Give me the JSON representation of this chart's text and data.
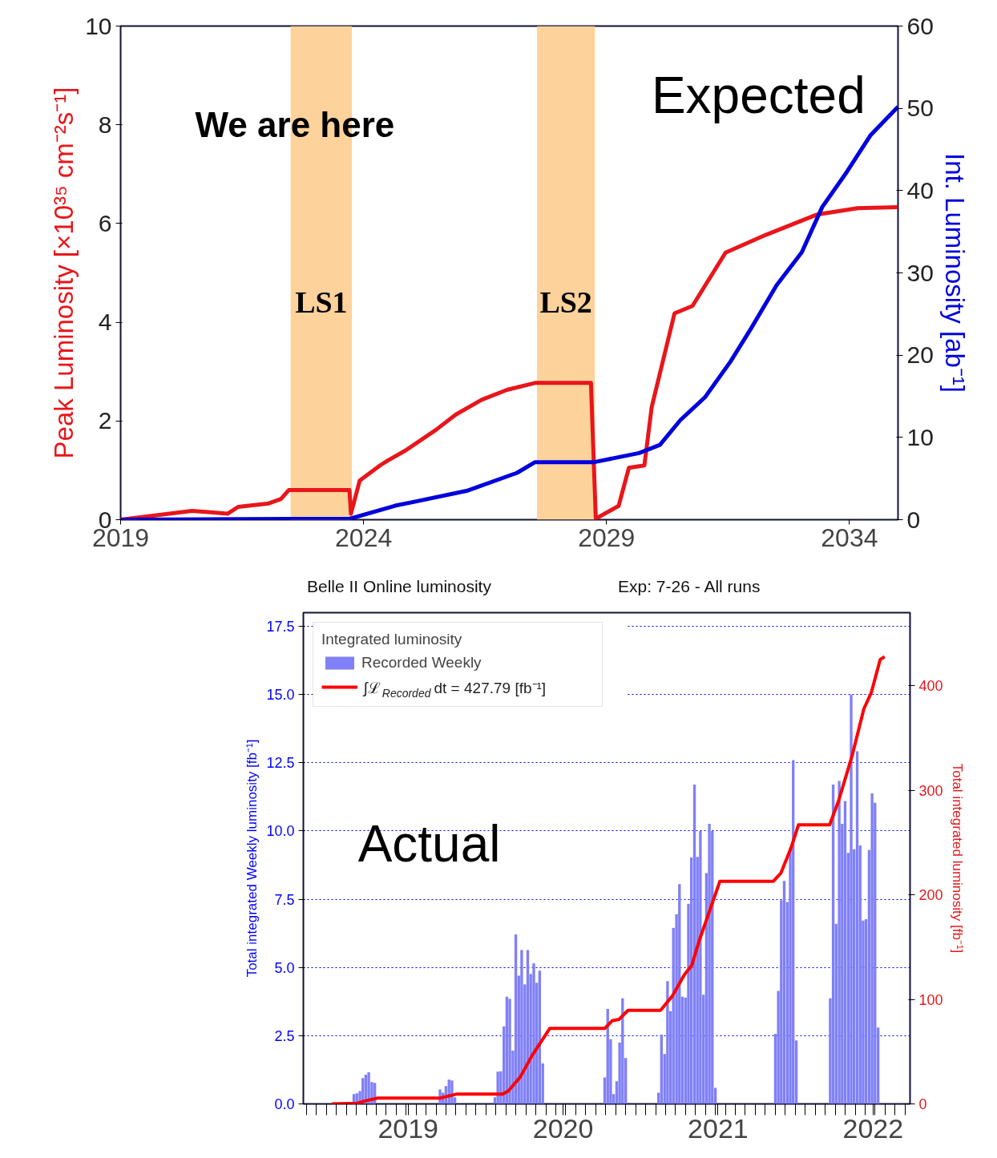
{
  "chart_data": [
    {
      "type": "line",
      "ylabel": "Peak Luminosity [×10³⁵ cm⁻²s⁻¹]",
      "y2label": "Int. Luminosity [ab⁻¹]",
      "annotations": [
        "We are here",
        "Expected"
      ],
      "xlim": [
        2019,
        2035
      ],
      "xticks": [
        2019,
        2024,
        2029,
        2034
      ],
      "ylim": [
        0,
        10
      ],
      "yticks": [
        0,
        2,
        4,
        6,
        8,
        10
      ],
      "y2lim": [
        0,
        60
      ],
      "y2ticks": [
        0,
        10,
        20,
        30,
        40,
        50,
        60
      ],
      "bands": [
        {
          "axis": "x",
          "from": 2022.5,
          "to": 2023.76,
          "label": "LS1",
          "color": "#fdd29b"
        },
        {
          "axis": "x",
          "from": 2027.57,
          "to": 2028.76,
          "label": "LS2",
          "color": "#fdd29b"
        }
      ],
      "series": [
        {
          "color": "#e8161b",
          "axis": "y",
          "x": [
            2019.0,
            2020.47,
            2021.2,
            2021.42,
            2022.05,
            2022.3,
            2022.46,
            2023.71,
            2023.74,
            2023.92,
            2024.34,
            2024.5,
            2024.86,
            2025.49,
            2025.9,
            2026.43,
            2026.95,
            2027.53,
            2028.68,
            2028.78,
            2029.25,
            2029.46,
            2029.78,
            2029.93,
            2030.4,
            2030.77,
            2031.45,
            2032.28,
            2033.33,
            2034.17,
            2035.0
          ],
          "values": [
            0,
            0.18,
            0.12,
            0.26,
            0.33,
            0.42,
            0.6,
            0.6,
            0.12,
            0.79,
            1.1,
            1.2,
            1.4,
            1.82,
            2.13,
            2.43,
            2.63,
            2.77,
            2.77,
            0.02,
            0.28,
            1.05,
            1.1,
            2.28,
            4.18,
            4.33,
            5.41,
            5.77,
            6.18,
            6.31,
            6.33
          ]
        },
        {
          "color": "#0000dd",
          "axis": "y2",
          "x": [
            2019.0,
            2022.46,
            2023.71,
            2024.65,
            2026.12,
            2027.16,
            2027.53,
            2028.75,
            2029.67,
            2030.1,
            2030.52,
            2031.03,
            2031.55,
            2031.97,
            2032.5,
            2033.02,
            2033.44,
            2033.95,
            2034.43,
            2035.0
          ],
          "values": [
            0,
            0.1,
            0.1,
            1.7,
            3.5,
            5.7,
            7.0,
            7.0,
            8.1,
            9.1,
            12.1,
            14.9,
            19.2,
            23.2,
            28.5,
            32.5,
            38.0,
            42.3,
            46.7,
            50.2
          ]
        }
      ]
    },
    {
      "type": "bar",
      "title": "Belle II Online luminosity",
      "subtitle": "Exp: 7-26 - All runs",
      "ylabel": "Total integrated Weekly luminosity [fb⁻¹]",
      "y2label": "Total integrated luminosity [fb⁻¹]",
      "legend_title": "Integrated luminosity",
      "annotations": [
        "Actual"
      ],
      "xlim": [
        2018.324,
        2022.239
      ],
      "xticks": [
        {
          "value": 2018.343,
          "label": null
        },
        {
          "value": 2018.408,
          "label": null
        },
        {
          "value": 2018.472,
          "label": null
        },
        {
          "value": 2018.536,
          "label": null
        },
        {
          "value": 2018.601,
          "label": null
        },
        {
          "value": 2018.665,
          "label": null
        },
        {
          "value": 2018.73,
          "label": null
        },
        {
          "value": 2018.794,
          "label": null
        },
        {
          "value": 2018.858,
          "label": null
        },
        {
          "value": 2018.923,
          "label": null
        },
        {
          "value": 2018.987,
          "label": null
        },
        {
          "value": 2019.052,
          "label": null
        },
        {
          "value": 2019.116,
          "label": null
        },
        {
          "value": 2019.18,
          "label": null
        },
        {
          "value": 2019.245,
          "label": null
        },
        {
          "value": 2019.309,
          "label": null
        },
        {
          "value": 2019.373,
          "label": null
        },
        {
          "value": 2019.438,
          "label": null
        },
        {
          "value": 2019.502,
          "label": null
        },
        {
          "value": 2019.567,
          "label": null
        },
        {
          "value": 2019.631,
          "label": null
        },
        {
          "value": 2019.695,
          "label": null
        },
        {
          "value": 2019.76,
          "label": null
        },
        {
          "value": 2019.824,
          "label": null
        },
        {
          "value": 2019.889,
          "label": null
        },
        {
          "value": 2019.953,
          "label": null
        },
        {
          "value": 2020.017,
          "label": null
        },
        {
          "value": 2020.082,
          "label": null
        },
        {
          "value": 2020.146,
          "label": null
        },
        {
          "value": 2020.211,
          "label": null
        },
        {
          "value": 2020.275,
          "label": null
        },
        {
          "value": 2020.339,
          "label": null
        },
        {
          "value": 2020.404,
          "label": null
        },
        {
          "value": 2020.468,
          "label": null
        },
        {
          "value": 2020.533,
          "label": null
        },
        {
          "value": 2020.597,
          "label": null
        },
        {
          "value": 2020.661,
          "label": null
        },
        {
          "value": 2020.726,
          "label": null
        },
        {
          "value": 2020.79,
          "label": null
        },
        {
          "value": 2020.855,
          "label": null
        },
        {
          "value": 2020.919,
          "label": null
        },
        {
          "value": 2020.983,
          "label": null
        },
        {
          "value": 2021.048,
          "label": null
        },
        {
          "value": 2021.112,
          "label": null
        },
        {
          "value": 2021.176,
          "label": null
        },
        {
          "value": 2021.241,
          "label": null
        },
        {
          "value": 2021.305,
          "label": null
        },
        {
          "value": 2021.37,
          "label": null
        },
        {
          "value": 2021.434,
          "label": null
        },
        {
          "value": 2021.499,
          "label": null
        },
        {
          "value": 2021.563,
          "label": null
        },
        {
          "value": 2021.627,
          "label": null
        },
        {
          "value": 2021.692,
          "label": null
        },
        {
          "value": 2021.756,
          "label": null
        },
        {
          "value": 2021.82,
          "label": null
        },
        {
          "value": 2021.885,
          "label": null
        },
        {
          "value": 2021.949,
          "label": null
        },
        {
          "value": 2022.014,
          "label": null
        },
        {
          "value": 2022.078,
          "label": null
        },
        {
          "value": 2022.142,
          "label": null
        },
        {
          "value": 2022.207,
          "label": null
        },
        2019,
        2020,
        2021,
        2022
      ],
      "ylim": [
        0,
        18
      ],
      "yticks": [
        {
          "value": 0,
          "label": "0.0"
        },
        {
          "value": 2.5,
          "label": "2.5"
        },
        {
          "value": 5,
          "label": "5.0"
        },
        {
          "value": 7.5,
          "label": "7.5"
        },
        {
          "value": 10,
          "label": "10.0"
        },
        {
          "value": 12.5,
          "label": "12.5"
        },
        {
          "value": 15,
          "label": "15.0"
        },
        {
          "value": 17.5,
          "label": "17.5"
        }
      ],
      "y2lim": [
        0,
        470
      ],
      "y2ticks": [
        0,
        100,
        200,
        300,
        400
      ],
      "grid": "y",
      "legend": "top left",
      "series": [
        {
          "name": "Recorded Weekly",
          "color": "#8080f8",
          "axis": "y",
          "x": [
            2018.65,
            2018.669,
            2018.689,
            2018.708,
            2018.727,
            2018.746,
            2018.766,
            2018.785,
            2019.206,
            2019.225,
            2019.244,
            2019.264,
            2019.283,
            2019.302,
            2019.56,
            2019.579,
            2019.598,
            2019.618,
            2019.637,
            2019.656,
            2019.676,
            2019.695,
            2019.714,
            2019.733,
            2019.753,
            2019.772,
            2019.791,
            2019.811,
            2019.83,
            2019.849,
            2019.869,
            2020.269,
            2020.288,
            2020.307,
            2020.326,
            2020.346,
            2020.365,
            2020.384,
            2020.404,
            2020.616,
            2020.635,
            2020.655,
            2020.674,
            2020.693,
            2020.712,
            2020.732,
            2020.751,
            2020.77,
            2020.79,
            2020.809,
            2020.828,
            2020.848,
            2020.867,
            2020.886,
            2020.906,
            2020.925,
            2020.944,
            2020.963,
            2020.983,
            2021.37,
            2021.389,
            2021.408,
            2021.427,
            2021.447,
            2021.466,
            2021.485,
            2021.505,
            2021.724,
            2021.743,
            2021.762,
            2021.782,
            2021.801,
            2021.82,
            2021.84,
            2021.859,
            2021.878,
            2021.898,
            2021.917,
            2021.936,
            2021.955,
            2021.975,
            2021.994,
            2022.013,
            2022.033
          ],
          "values": [
            0.36,
            0.39,
            0.47,
            0.95,
            1.07,
            1.16,
            0.8,
            0.77,
            0.53,
            0.41,
            0.65,
            0.89,
            0.86,
            0.24,
            0.24,
            1.18,
            1.2,
            2.84,
            3.93,
            3.85,
            1.95,
            6.21,
            4.7,
            5.64,
            4.38,
            5.64,
            4.76,
            5.15,
            4.44,
            4.88,
            1.48,
            0.97,
            3.48,
            2.37,
            0.36,
            0.83,
            2.25,
            3.87,
            1.68,
            0.41,
            2.54,
            1.83,
            4.5,
            3.4,
            6.45,
            6.95,
            8.05,
            3.93,
            3.9,
            7.33,
            9.03,
            11.7,
            9.05,
            10.0,
            4.0,
            8.46,
            10.26,
            10.0,
            0.59,
            2.57,
            4.14,
            7.46,
            8.17,
            7.4,
            9.4,
            12.6,
            2.33,
            3.87,
            11.7,
            6.6,
            11.83,
            10.26,
            11.1,
            9.2,
            15.0,
            9.33,
            12.92,
            9.47,
            6.72,
            6.77,
            9.3,
            11.38,
            11.03,
            2.8
          ]
        },
        {
          "type": "line",
          "name": "∫ℒ$_{Recorded}$ dt = 427.79 [fb⁻¹]",
          "color": "#ff0000",
          "axis": "y2",
          "x": [
            2018.507,
            2018.67,
            2018.727,
            2018.804,
            2019.206,
            2019.311,
            2019.609,
            2019.646,
            2019.723,
            2019.8,
            2019.914,
            2020.269,
            2020.317,
            2020.361,
            2020.419,
            2020.629,
            2020.706,
            2020.782,
            2020.831,
            2020.878,
            2020.936,
            2021.012,
            2021.357,
            2021.405,
            2021.472,
            2021.519,
            2021.72,
            2021.778,
            2021.865,
            2021.941,
            2021.989,
            2022.046,
            2022.075
          ],
          "values": [
            0,
            0.6,
            3,
            5.6,
            5.6,
            9.3,
            9.3,
            12.3,
            25.6,
            46.3,
            72.2,
            72.2,
            79.6,
            80.9,
            89.5,
            89.5,
            103.4,
            123.5,
            132.7,
            155.9,
            180.6,
            213,
            213,
            220.7,
            245.4,
            267,
            267,
            290,
            333,
            378,
            393.5,
            425,
            428
          ]
        }
      ]
    }
  ]
}
